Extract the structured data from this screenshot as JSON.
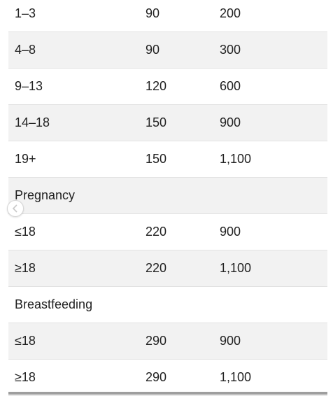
{
  "rows": [
    {
      "type": "data",
      "age": "1–3",
      "rda": "90",
      "ul": "200"
    },
    {
      "type": "data",
      "age": "4–8",
      "rda": "90",
      "ul": "300"
    },
    {
      "type": "data",
      "age": "9–13",
      "rda": "120",
      "ul": "600"
    },
    {
      "type": "data",
      "age": "14–18",
      "rda": "150",
      "ul": "900"
    },
    {
      "type": "data",
      "age": "19+",
      "rda": "150",
      "ul": "1,100"
    },
    {
      "type": "section",
      "label": "Pregnancy"
    },
    {
      "type": "data",
      "age": "≤18",
      "rda": "220",
      "ul": "900"
    },
    {
      "type": "data",
      "age": "≥18",
      "rda": "220",
      "ul": "1,100"
    },
    {
      "type": "section",
      "label": "Breastfeeding"
    },
    {
      "type": "data",
      "age": "≤18",
      "rda": "290",
      "ul": "900"
    },
    {
      "type": "data",
      "age": "≥18",
      "rda": "290",
      "ul": "1,100"
    }
  ],
  "icons": {
    "scroll_left": "chevron-left-icon"
  }
}
